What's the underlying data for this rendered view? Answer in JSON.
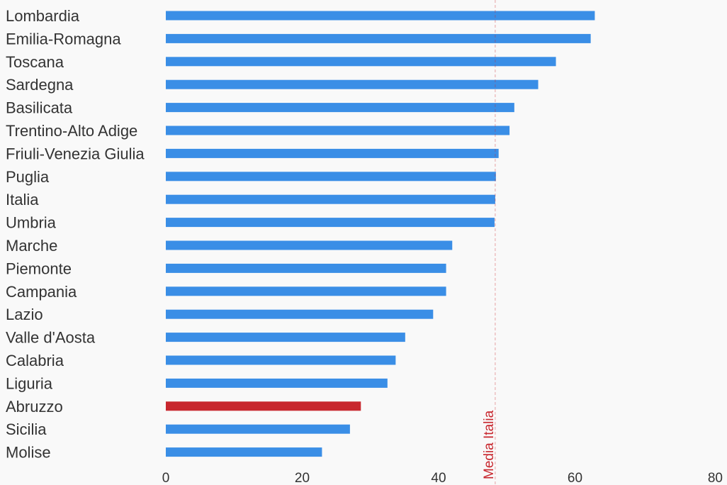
{
  "chart_data": {
    "type": "bar",
    "orientation": "horizontal",
    "categories": [
      "Lombardia",
      "Emilia-Romagna",
      "Toscana",
      "Sardegna",
      "Basilicata",
      "Trentino-Alto Adige",
      "Friuli-Venezia Giulia",
      "Puglia",
      "Italia",
      "Umbria",
      "Marche",
      "Piemonte",
      "Campania",
      "Lazio",
      "Valle d'Aosta",
      "Calabria",
      "Liguria",
      "Abruzzo",
      "Sicilia",
      "Molise"
    ],
    "values": [
      62.9,
      62.3,
      57.2,
      54.6,
      51.1,
      50.4,
      48.8,
      48.4,
      48.3,
      48.2,
      42.0,
      41.1,
      41.1,
      39.2,
      35.1,
      33.7,
      32.5,
      28.6,
      27.0,
      22.9
    ],
    "highlight": "Abruzzo",
    "xlim": [
      0,
      80
    ],
    "xticks": [
      0,
      20,
      40,
      60,
      80
    ],
    "reference_line": {
      "value": 48.3,
      "label": "Media Italia"
    },
    "colors": {
      "bar": "#3a8ee6",
      "highlight": "#c8272e",
      "reference": "#c8272e",
      "text": "#333333"
    },
    "title": "",
    "xlabel": "",
    "ylabel": "",
    "grid": false
  }
}
